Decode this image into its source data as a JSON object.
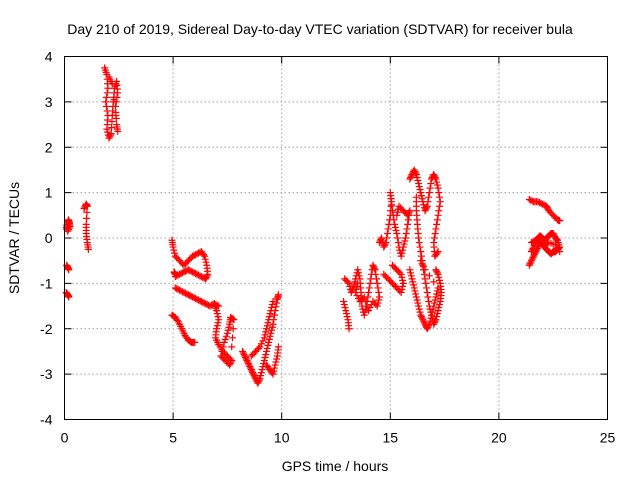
{
  "chart_data": {
    "type": "scatter",
    "title": "Day 210 of 2019, Sidereal Day-to-day VTEC variation (SDTVAR) for receiver bula",
    "xlabel": "GPS time / hours",
    "ylabel": "SDTVAR / TECUs",
    "xlim": [
      0,
      25
    ],
    "ylim": [
      -4,
      4
    ],
    "xticks": [
      0,
      5,
      10,
      15,
      20,
      25
    ],
    "yticks": [
      -4,
      -3,
      -2,
      -1,
      0,
      1,
      2,
      3,
      4
    ],
    "xtick_labels": [
      "0",
      "5",
      "10",
      "15",
      "20",
      "25"
    ],
    "ytick_labels": [
      "-4",
      "-3",
      "-2",
      "-1",
      "0",
      "1",
      "2",
      "3",
      "4"
    ],
    "grid": true,
    "marker": "plus",
    "color": "#ff0000",
    "segments": [
      {
        "points": [
          [
            0.08,
            0.2
          ],
          [
            0.12,
            0.3
          ],
          [
            0.18,
            0.4
          ],
          [
            0.22,
            0.35
          ],
          [
            0.25,
            0.25
          ],
          [
            0.15,
            0.15
          ]
        ]
      },
      {
        "points": [
          [
            0.1,
            -0.6
          ],
          [
            0.15,
            -0.65
          ],
          [
            0.2,
            -0.7
          ]
        ]
      },
      {
        "points": [
          [
            0.08,
            -1.2
          ],
          [
            0.15,
            -1.25
          ],
          [
            0.2,
            -1.3
          ]
        ]
      },
      {
        "points": [
          [
            0.9,
            0.65
          ],
          [
            1.0,
            0.75
          ],
          [
            1.05,
            0.7
          ],
          [
            1.0,
            0.3
          ],
          [
            1.0,
            0.1
          ],
          [
            1.05,
            -0.1
          ],
          [
            1.1,
            -0.25
          ]
        ]
      },
      {
        "points": [
          [
            1.85,
            3.75
          ],
          [
            1.95,
            3.6
          ],
          [
            2.0,
            3.3
          ],
          [
            1.9,
            3.0
          ],
          [
            2.0,
            2.7
          ],
          [
            1.95,
            2.4
          ],
          [
            2.05,
            2.2
          ],
          [
            2.15,
            2.3
          ],
          [
            2.2,
            2.7
          ],
          [
            2.25,
            3.0
          ],
          [
            2.3,
            3.3
          ],
          [
            2.4,
            3.45
          ],
          [
            2.45,
            3.2
          ],
          [
            2.35,
            2.9
          ],
          [
            2.4,
            2.5
          ],
          [
            2.45,
            2.35
          ],
          [
            2.2,
            3.4
          ],
          [
            2.05,
            3.55
          ]
        ]
      },
      {
        "points": [
          [
            4.95,
            -0.05
          ],
          [
            5.0,
            -0.2
          ],
          [
            5.1,
            -0.4
          ],
          [
            5.3,
            -0.5
          ],
          [
            5.5,
            -0.6
          ],
          [
            5.7,
            -0.5
          ],
          [
            5.9,
            -0.4
          ],
          [
            6.1,
            -0.35
          ],
          [
            6.3,
            -0.3
          ],
          [
            6.45,
            -0.4
          ],
          [
            6.55,
            -0.6
          ],
          [
            6.6,
            -0.8
          ],
          [
            6.5,
            -0.9
          ],
          [
            6.3,
            -0.85
          ],
          [
            6.1,
            -0.8
          ],
          [
            5.9,
            -0.75
          ],
          [
            5.7,
            -0.7
          ],
          [
            5.5,
            -0.75
          ],
          [
            5.3,
            -0.8
          ],
          [
            5.1,
            -0.85
          ]
        ]
      },
      {
        "points": [
          [
            5.05,
            -0.75
          ],
          [
            5.1,
            -0.8
          ]
        ]
      },
      {
        "points": [
          [
            5.1,
            -1.1
          ],
          [
            5.3,
            -1.15
          ],
          [
            5.5,
            -1.2
          ],
          [
            5.7,
            -1.25
          ],
          [
            5.9,
            -1.3
          ],
          [
            6.1,
            -1.35
          ],
          [
            6.3,
            -1.4
          ],
          [
            6.5,
            -1.45
          ],
          [
            6.7,
            -1.5
          ],
          [
            6.9,
            -1.45
          ],
          [
            7.1,
            -1.5
          ]
        ]
      },
      {
        "points": [
          [
            4.95,
            -1.7
          ],
          [
            5.1,
            -1.75
          ],
          [
            5.25,
            -1.85
          ],
          [
            5.4,
            -2.0
          ],
          [
            5.55,
            -2.15
          ],
          [
            5.7,
            -2.25
          ],
          [
            5.85,
            -2.3
          ],
          [
            6.0,
            -2.3
          ]
        ]
      },
      {
        "points": [
          [
            6.9,
            -1.45
          ],
          [
            7.0,
            -1.6
          ],
          [
            7.1,
            -1.8
          ],
          [
            7.0,
            -2.0
          ],
          [
            6.95,
            -2.2
          ],
          [
            7.1,
            -2.35
          ],
          [
            7.3,
            -2.5
          ],
          [
            7.5,
            -2.6
          ],
          [
            7.7,
            -2.7
          ],
          [
            7.6,
            -2.8
          ],
          [
            7.4,
            -2.7
          ],
          [
            7.2,
            -2.6
          ],
          [
            7.35,
            -2.3
          ],
          [
            7.5,
            -2.1
          ],
          [
            7.6,
            -1.9
          ],
          [
            7.65,
            -1.75
          ],
          [
            7.8,
            -1.8
          ],
          [
            7.7,
            -2.4
          ]
        ]
      },
      {
        "points": [
          [
            8.2,
            -2.5
          ],
          [
            8.3,
            -2.6
          ],
          [
            8.4,
            -2.7
          ],
          [
            8.5,
            -2.8
          ],
          [
            8.6,
            -2.9
          ],
          [
            8.7,
            -3.0
          ],
          [
            8.8,
            -3.1
          ],
          [
            8.9,
            -3.2
          ],
          [
            9.0,
            -3.1
          ],
          [
            9.1,
            -2.9
          ],
          [
            9.2,
            -2.7
          ],
          [
            9.3,
            -2.5
          ],
          [
            9.4,
            -2.3
          ],
          [
            9.5,
            -2.1
          ],
          [
            9.6,
            -1.9
          ],
          [
            9.7,
            -1.6
          ],
          [
            9.8,
            -1.35
          ],
          [
            9.85,
            -1.25
          ]
        ]
      },
      {
        "points": [
          [
            8.6,
            -2.6
          ],
          [
            8.8,
            -2.5
          ],
          [
            9.0,
            -2.4
          ],
          [
            9.2,
            -2.2
          ],
          [
            9.3,
            -2.0
          ],
          [
            9.4,
            -1.8
          ],
          [
            9.5,
            -1.6
          ],
          [
            9.6,
            -1.4
          ]
        ]
      },
      {
        "points": [
          [
            9.3,
            -2.8
          ],
          [
            9.45,
            -2.9
          ],
          [
            9.6,
            -3.0
          ],
          [
            9.7,
            -2.8
          ],
          [
            9.8,
            -2.6
          ],
          [
            9.85,
            -2.4
          ]
        ]
      },
      {
        "points": [
          [
            12.85,
            -1.4
          ],
          [
            12.95,
            -1.6
          ],
          [
            13.05,
            -1.8
          ],
          [
            13.1,
            -2.0
          ]
        ]
      },
      {
        "points": [
          [
            12.9,
            -0.9
          ],
          [
            13.1,
            -1.0
          ],
          [
            13.2,
            -1.2
          ],
          [
            13.3,
            -1.1
          ],
          [
            13.4,
            -0.9
          ],
          [
            13.5,
            -0.7
          ],
          [
            13.6,
            -0.9
          ],
          [
            13.65,
            -1.2
          ],
          [
            13.7,
            -1.5
          ],
          [
            13.8,
            -1.7
          ],
          [
            13.9,
            -1.5
          ],
          [
            14.0,
            -1.2
          ],
          [
            14.1,
            -0.9
          ],
          [
            14.2,
            -0.6
          ],
          [
            14.3,
            -0.7
          ],
          [
            14.4,
            -1.0
          ],
          [
            14.5,
            -1.3
          ],
          [
            14.4,
            -1.5
          ],
          [
            14.2,
            -1.4
          ],
          [
            14.0,
            -1.6
          ],
          [
            13.8,
            -1.3
          ],
          [
            13.6,
            -1.4
          ],
          [
            13.4,
            -1.2
          ],
          [
            13.5,
            -1.0
          ]
        ]
      },
      {
        "points": [
          [
            14.5,
            -0.1
          ],
          [
            14.6,
            0.0
          ],
          [
            14.7,
            -0.2
          ],
          [
            14.8,
            -0.1
          ],
          [
            14.9,
            0.2
          ],
          [
            15.0,
            0.5
          ],
          [
            15.05,
            0.8
          ],
          [
            15.0,
            1.0
          ],
          [
            15.1,
            0.6
          ],
          [
            15.2,
            0.3
          ],
          [
            15.3,
            0.1
          ],
          [
            15.4,
            -0.2
          ],
          [
            15.5,
            -0.4
          ],
          [
            15.6,
            -0.2
          ],
          [
            15.7,
            0.0
          ],
          [
            15.8,
            0.3
          ],
          [
            15.9,
            0.6
          ],
          [
            15.8,
            0.5
          ],
          [
            15.6,
            0.6
          ],
          [
            15.4,
            0.7
          ],
          [
            15.3,
            0.5
          ]
        ]
      },
      {
        "points": [
          [
            14.7,
            -0.8
          ],
          [
            14.9,
            -0.9
          ],
          [
            15.1,
            -1.0
          ],
          [
            15.3,
            -1.1
          ],
          [
            15.5,
            -1.2
          ],
          [
            15.6,
            -1.0
          ],
          [
            15.5,
            -0.8
          ],
          [
            15.3,
            -0.7
          ],
          [
            15.1,
            -0.6
          ]
        ]
      },
      {
        "points": [
          [
            15.9,
            1.3
          ],
          [
            16.0,
            1.4
          ],
          [
            16.1,
            1.5
          ],
          [
            16.2,
            1.4
          ],
          [
            16.3,
            1.2
          ],
          [
            16.4,
            1.0
          ],
          [
            16.5,
            0.8
          ],
          [
            16.6,
            0.6
          ],
          [
            16.7,
            0.7
          ],
          [
            16.8,
            1.0
          ],
          [
            16.9,
            1.3
          ],
          [
            17.0,
            1.4
          ],
          [
            17.1,
            1.3
          ],
          [
            17.2,
            1.1
          ],
          [
            17.3,
            0.8
          ],
          [
            17.2,
            0.5
          ],
          [
            17.1,
            0.2
          ],
          [
            17.0,
            -0.1
          ],
          [
            17.05,
            -0.4
          ],
          [
            17.2,
            -0.3
          ]
        ]
      },
      {
        "points": [
          [
            16.2,
            0.9
          ],
          [
            16.2,
            0.6
          ],
          [
            16.25,
            0.3
          ],
          [
            16.3,
            0.0
          ],
          [
            16.4,
            -0.3
          ],
          [
            16.5,
            -0.6
          ],
          [
            16.6,
            -0.9
          ],
          [
            16.7,
            -1.2
          ],
          [
            16.8,
            -1.5
          ],
          [
            16.9,
            -1.7
          ],
          [
            17.0,
            -1.9
          ],
          [
            17.1,
            -1.8
          ],
          [
            17.2,
            -1.6
          ],
          [
            17.3,
            -1.4
          ],
          [
            17.35,
            -1.2
          ],
          [
            17.3,
            -1.0
          ],
          [
            17.2,
            -0.8
          ],
          [
            17.1,
            -0.7
          ]
        ]
      },
      {
        "points": [
          [
            15.9,
            -0.7
          ],
          [
            16.0,
            -0.9
          ],
          [
            16.1,
            -1.1
          ],
          [
            16.2,
            -1.3
          ],
          [
            16.3,
            -1.5
          ],
          [
            16.4,
            -1.7
          ],
          [
            16.5,
            -1.8
          ],
          [
            16.6,
            -1.9
          ],
          [
            16.7,
            -2.0
          ],
          [
            16.8,
            -1.9
          ],
          [
            16.9,
            -1.7
          ],
          [
            17.0,
            -1.5
          ],
          [
            17.1,
            -1.3
          ],
          [
            17.2,
            -1.1
          ],
          [
            16.6,
            -0.7
          ],
          [
            16.4,
            -0.5
          ]
        ]
      },
      {
        "points": [
          [
            21.4,
            0.85
          ],
          [
            21.6,
            0.8
          ],
          [
            21.8,
            0.8
          ],
          [
            22.0,
            0.75
          ],
          [
            22.2,
            0.7
          ],
          [
            22.3,
            0.6
          ],
          [
            22.5,
            0.5
          ],
          [
            22.7,
            0.4
          ],
          [
            22.8,
            0.38
          ]
        ]
      },
      {
        "points": [
          [
            21.4,
            -0.6
          ],
          [
            21.5,
            -0.5
          ],
          [
            21.6,
            -0.4
          ],
          [
            21.7,
            -0.3
          ],
          [
            21.8,
            -0.2
          ],
          [
            21.9,
            -0.1
          ],
          [
            22.0,
            -0.15
          ],
          [
            22.1,
            -0.2
          ],
          [
            22.2,
            -0.25
          ],
          [
            22.3,
            -0.3
          ],
          [
            22.4,
            -0.35
          ],
          [
            22.5,
            -0.3
          ],
          [
            22.6,
            -0.3
          ],
          [
            22.7,
            -0.25
          ],
          [
            22.8,
            -0.2
          ],
          [
            22.7,
            -0.05
          ],
          [
            22.6,
            0.0
          ],
          [
            22.5,
            0.1
          ],
          [
            22.4,
            0.1
          ],
          [
            22.3,
            0.05
          ],
          [
            22.2,
            0.0
          ],
          [
            22.1,
            -0.05
          ],
          [
            22.0,
            0.0
          ],
          [
            21.9,
            0.05
          ],
          [
            21.8,
            0.0
          ],
          [
            21.7,
            -0.1
          ],
          [
            21.6,
            -0.2
          ],
          [
            21.5,
            -0.3
          ]
        ]
      },
      {
        "points": [
          [
            21.5,
            -0.1
          ],
          [
            21.7,
            -0.05
          ],
          [
            21.9,
            -0.1
          ],
          [
            22.1,
            -0.15
          ],
          [
            22.3,
            -0.1
          ],
          [
            22.6,
            -0.15
          ],
          [
            22.8,
            -0.3
          ]
        ]
      }
    ]
  }
}
